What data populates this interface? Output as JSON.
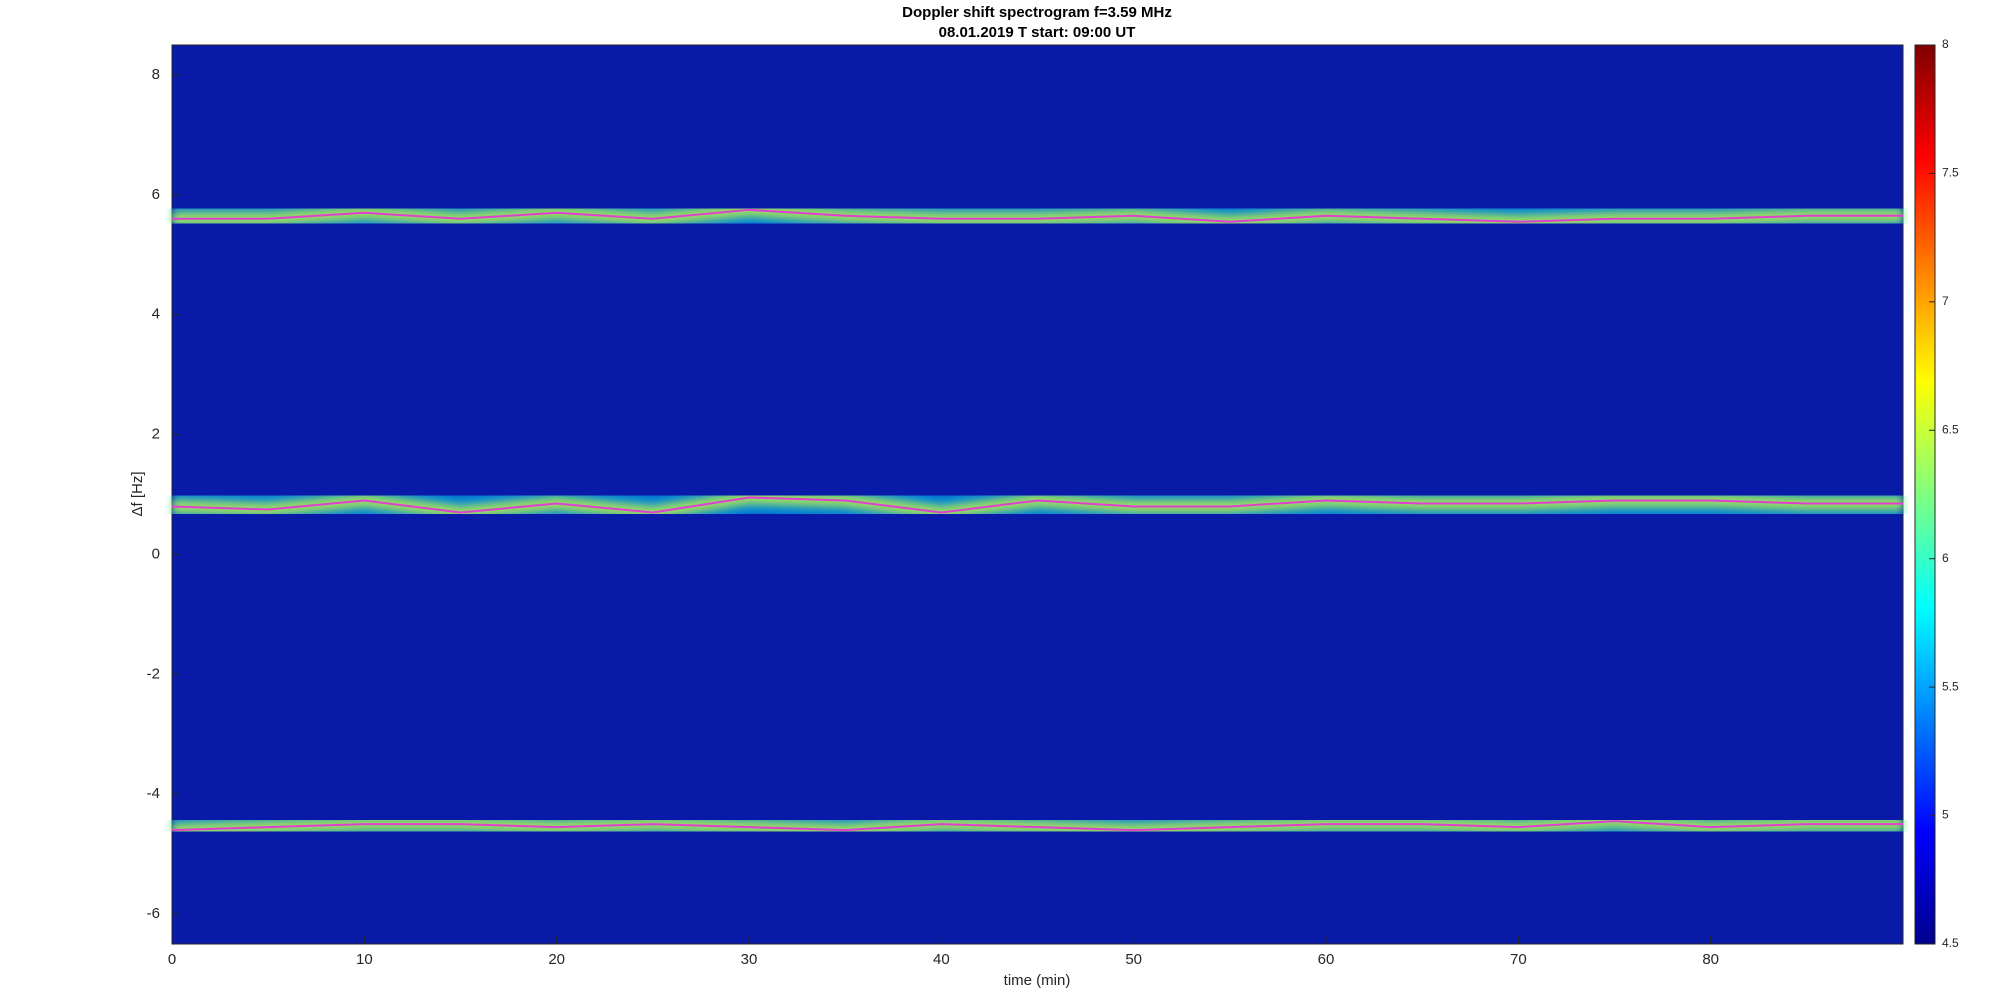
{
  "chart_data": {
    "type": "spectrogram",
    "title": "Doppler shift spectrogram f=3.59 MHz",
    "subtitle": "08.01.2019   T start: 09:00 UT",
    "x_label": "time (min)",
    "y_label": "Δf [Hz]",
    "xlim": [
      0,
      90
    ],
    "xticks": [
      0,
      10,
      20,
      30,
      40,
      50,
      60,
      70,
      80
    ],
    "ylim": [
      -6.5,
      8.5
    ],
    "yticks": [
      -6,
      -4,
      -2,
      0,
      2,
      4,
      6,
      8
    ],
    "colormap": "jet",
    "clim": [
      4.5,
      8
    ],
    "cticks": [
      4.5,
      5,
      5.5,
      6,
      6.5,
      7,
      7.5,
      8
    ],
    "x": [
      0,
      5,
      10,
      15,
      20,
      25,
      30,
      35,
      40,
      45,
      50,
      55,
      60,
      65,
      70,
      75,
      80,
      85,
      90
    ],
    "series": [
      {
        "color": "#e040d0",
        "values": [
          5.6,
          5.6,
          5.7,
          5.6,
          5.7,
          5.6,
          5.75,
          5.65,
          5.6,
          5.6,
          5.65,
          5.55,
          5.65,
          5.6,
          5.55,
          5.6,
          5.6,
          5.65,
          5.65
        ]
      },
      {
        "color": "#e040d0",
        "values": [
          0.8,
          0.75,
          0.9,
          0.7,
          0.85,
          0.7,
          0.95,
          0.9,
          0.7,
          0.9,
          0.8,
          0.8,
          0.9,
          0.85,
          0.85,
          0.9,
          0.9,
          0.85,
          0.85
        ]
      },
      {
        "color": "#e040d0",
        "values": [
          -4.6,
          -4.55,
          -4.5,
          -4.5,
          -4.55,
          -4.5,
          -4.55,
          -4.6,
          -4.5,
          -4.55,
          -4.6,
          -4.55,
          -4.5,
          -4.5,
          -4.55,
          -4.45,
          -4.55,
          -4.5,
          -4.5
        ]
      }
    ]
  }
}
